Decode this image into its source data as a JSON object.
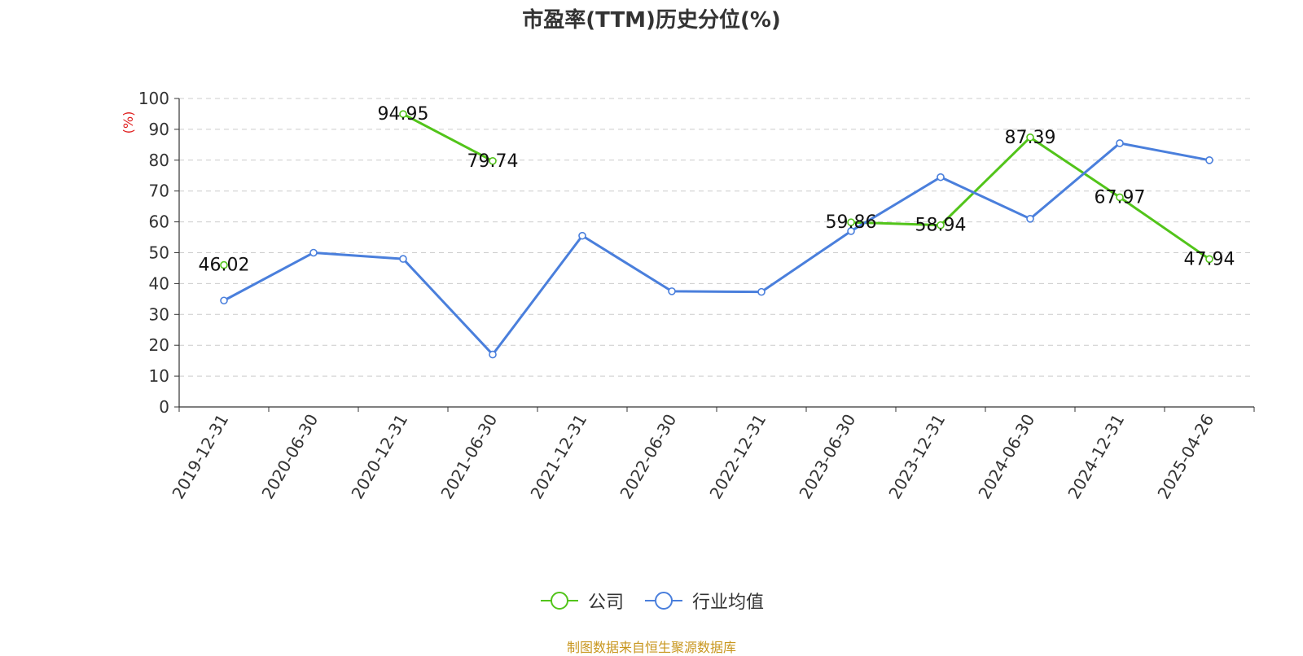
{
  "title": "市盈率(TTM)历史分位(%)",
  "source_note": "制图数据来自恒生聚源数据库",
  "colors": {
    "company": "#52c41a",
    "industry": "#4a7fdc",
    "ylabel": "#e02020",
    "grid": "#cccccc",
    "axis": "#333333"
  },
  "chart_data": {
    "type": "line",
    "title": "市盈率(TTM)历史分位(%)",
    "ylabel": "(%)",
    "ylim": [
      0,
      100
    ],
    "yticks": [
      0,
      10,
      20,
      30,
      40,
      50,
      60,
      70,
      80,
      90,
      100
    ],
    "grid": true,
    "legend_position": "bottom",
    "categories": [
      "2019-12-31",
      "2020-06-30",
      "2020-12-31",
      "2021-06-30",
      "2021-12-31",
      "2022-06-30",
      "2022-12-31",
      "2023-06-30",
      "2023-12-31",
      "2024-06-30",
      "2024-12-31",
      "2025-04-26"
    ],
    "series": [
      {
        "name": "公司",
        "values": [
          46.02,
          null,
          94.95,
          79.74,
          null,
          null,
          null,
          59.86,
          58.94,
          87.39,
          67.97,
          47.94
        ],
        "show_labels": true
      },
      {
        "name": "行业均值",
        "values": [
          34.5,
          50.0,
          48.0,
          17.0,
          55.5,
          37.5,
          37.3,
          57.0,
          74.5,
          61.0,
          85.5,
          80.0
        ],
        "show_labels": false
      }
    ]
  }
}
